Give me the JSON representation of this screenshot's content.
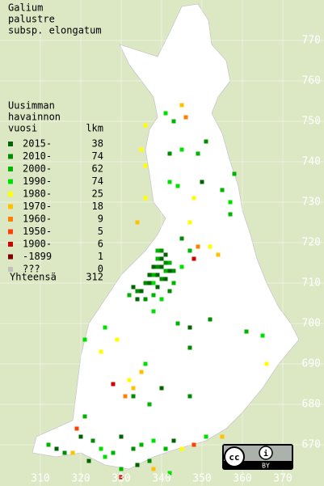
{
  "title": [
    "Galium",
    "palustre",
    "subsp. elongatum"
  ],
  "legend": {
    "heading": [
      "Uusimman",
      "havainnon",
      "vuosi"
    ],
    "count_heading": "lkm",
    "entries": [
      {
        "label": "2015-",
        "count": 38,
        "color": "#006400"
      },
      {
        "label": "2010-",
        "count": 74,
        "color": "#008c00"
      },
      {
        "label": "2000-",
        "count": 62,
        "color": "#00b400"
      },
      {
        "label": "1990-",
        "count": 74,
        "color": "#00e000"
      },
      {
        "label": "1980-",
        "count": 25,
        "color": "#ffff00"
      },
      {
        "label": "1970-",
        "count": 18,
        "color": "#ffc000"
      },
      {
        "label": "1960-",
        "count": 9,
        "color": "#ff8000"
      },
      {
        "label": "1950-",
        "count": 5,
        "color": "#ff4000"
      },
      {
        "label": "1900-",
        "count": 6,
        "color": "#d00000"
      },
      {
        "label": "-1899",
        "count": 1,
        "color": "#800000"
      },
      {
        "label": "???",
        "count": 0,
        "color": "#c0c0c0"
      }
    ],
    "total_label": "Yhteensä",
    "total": 312
  },
  "xticks": [
    310,
    320,
    330,
    340,
    350,
    360,
    370
  ],
  "yticks": [
    770,
    760,
    750,
    740,
    730,
    720,
    710,
    700,
    690,
    680,
    670
  ],
  "xlim": [
    300,
    380
  ],
  "ylim": [
    660,
    780
  ],
  "points": [
    [
      341,
      752,
      3
    ],
    [
      343,
      750,
      2
    ],
    [
      345,
      743,
      3
    ],
    [
      342,
      742,
      1
    ],
    [
      349,
      742,
      2
    ],
    [
      350,
      735,
      0
    ],
    [
      342,
      735,
      3
    ],
    [
      344,
      734,
      3
    ],
    [
      351,
      745,
      1
    ],
    [
      358,
      737,
      2
    ],
    [
      355,
      733,
      2
    ],
    [
      357,
      730,
      3
    ],
    [
      357,
      727,
      2
    ],
    [
      345,
      754,
      5
    ],
    [
      346,
      751,
      6
    ],
    [
      336,
      749,
      4
    ],
    [
      335,
      743,
      4
    ],
    [
      336,
      739,
      4
    ],
    [
      336,
      731,
      4
    ],
    [
      334,
      725,
      5
    ],
    [
      347,
      725,
      4
    ],
    [
      348,
      731,
      4
    ],
    [
      339,
      718,
      2
    ],
    [
      340,
      718,
      1
    ],
    [
      341,
      717,
      0
    ],
    [
      339,
      716,
      2
    ],
    [
      340,
      716,
      0
    ],
    [
      341,
      715,
      1
    ],
    [
      342,
      715,
      2
    ],
    [
      338,
      714,
      0
    ],
    [
      339,
      714,
      1
    ],
    [
      340,
      714,
      0
    ],
    [
      341,
      713,
      2
    ],
    [
      342,
      713,
      0
    ],
    [
      343,
      713,
      1
    ],
    [
      337,
      712,
      0
    ],
    [
      338,
      712,
      2
    ],
    [
      339,
      712,
      0
    ],
    [
      340,
      711,
      1
    ],
    [
      341,
      711,
      0
    ],
    [
      336,
      710,
      1
    ],
    [
      337,
      710,
      0
    ],
    [
      338,
      710,
      3
    ],
    [
      339,
      709,
      0
    ],
    [
      333,
      709,
      0
    ],
    [
      334,
      708,
      1
    ],
    [
      335,
      708,
      0
    ],
    [
      332,
      707,
      2
    ],
    [
      334,
      706,
      0
    ],
    [
      336,
      706,
      1
    ],
    [
      338,
      707,
      2
    ],
    [
      340,
      706,
      3
    ],
    [
      342,
      708,
      1
    ],
    [
      343,
      710,
      2
    ],
    [
      345,
      714,
      3
    ],
    [
      347,
      718,
      2
    ],
    [
      345,
      721,
      1
    ],
    [
      348,
      716,
      8
    ],
    [
      349,
      719,
      6
    ],
    [
      352,
      719,
      4
    ],
    [
      354,
      717,
      5
    ],
    [
      338,
      703,
      3
    ],
    [
      344,
      700,
      2
    ],
    [
      347,
      699,
      0
    ],
    [
      326,
      699,
      3
    ],
    [
      321,
      696,
      3
    ],
    [
      325,
      693,
      4
    ],
    [
      329,
      696,
      4
    ],
    [
      347,
      694,
      1
    ],
    [
      352,
      701,
      1
    ],
    [
      361,
      698,
      2
    ],
    [
      365,
      697,
      3
    ],
    [
      366,
      690,
      4
    ],
    [
      336,
      690,
      3
    ],
    [
      335,
      688,
      5
    ],
    [
      332,
      686,
      4
    ],
    [
      333,
      684,
      5
    ],
    [
      331,
      682,
      6
    ],
    [
      328,
      685,
      8
    ],
    [
      333,
      682,
      1
    ],
    [
      340,
      684,
      0
    ],
    [
      337,
      680,
      2
    ],
    [
      347,
      682,
      1
    ],
    [
      321,
      677,
      2
    ],
    [
      319,
      674,
      7
    ],
    [
      320,
      672,
      0
    ],
    [
      323,
      671,
      1
    ],
    [
      325,
      669,
      3
    ],
    [
      328,
      668,
      2
    ],
    [
      330,
      672,
      0
    ],
    [
      333,
      669,
      1
    ],
    [
      335,
      670,
      2
    ],
    [
      338,
      671,
      3
    ],
    [
      341,
      669,
      2
    ],
    [
      343,
      671,
      0
    ],
    [
      345,
      669,
      4
    ],
    [
      348,
      670,
      7
    ],
    [
      351,
      672,
      3
    ],
    [
      355,
      672,
      5
    ],
    [
      314,
      669,
      0
    ],
    [
      316,
      668,
      1
    ],
    [
      312,
      670,
      2
    ],
    [
      318,
      668,
      5
    ],
    [
      322,
      666,
      0
    ],
    [
      326,
      667,
      3
    ],
    [
      330,
      664,
      2
    ],
    [
      334,
      665,
      0
    ],
    [
      337,
      666,
      1
    ],
    [
      330,
      662,
      8
    ],
    [
      338,
      664,
      5
    ],
    [
      342,
      663,
      3
    ]
  ],
  "license_label": "BY"
}
